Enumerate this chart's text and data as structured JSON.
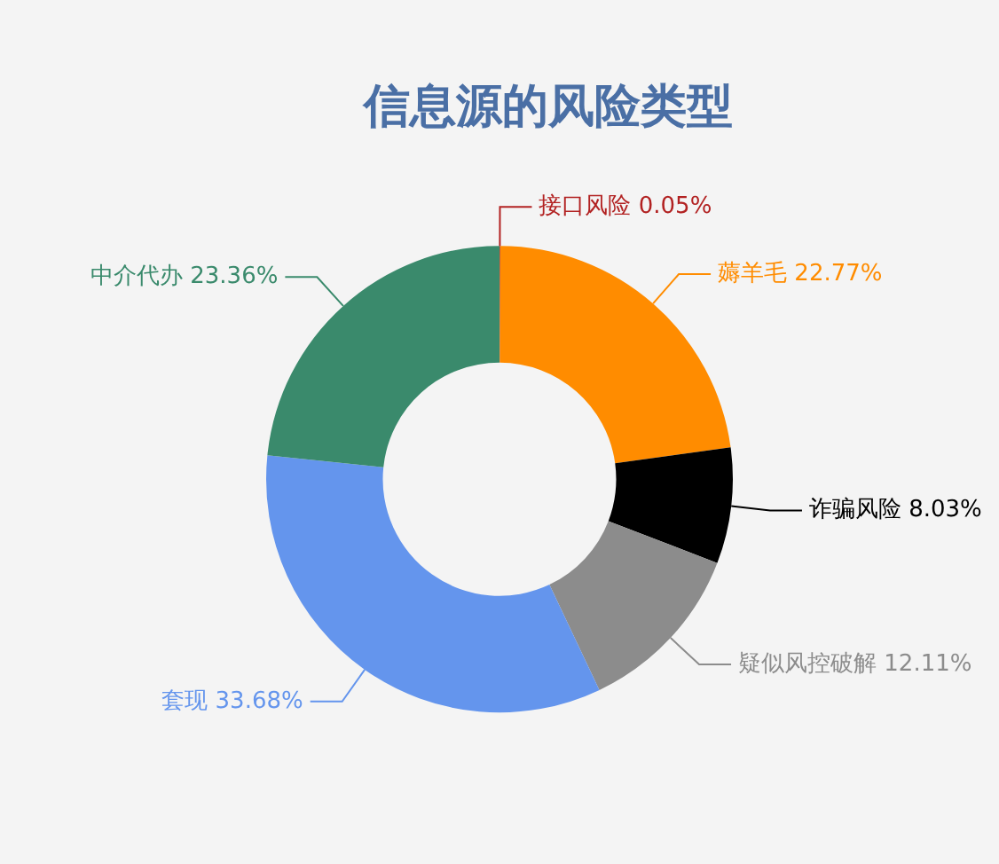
{
  "chart_data": {
    "type": "donut",
    "title": "信息源的风险类型",
    "categories": [
      "接口风险",
      "薅羊毛",
      "诈骗风险",
      "疑似风控破解",
      "套现",
      "中介代办"
    ],
    "values": [
      0.05,
      22.77,
      8.03,
      12.11,
      33.68,
      23.36
    ],
    "colors": [
      "#b22222",
      "#ff8c00",
      "#000000",
      "#8c8c8c",
      "#6495ed",
      "#3a8a6c"
    ],
    "value_labels": [
      "0.05%",
      "22.77%",
      "8.03%",
      "12.11%",
      "33.68%",
      "23.36%"
    ],
    "legend": false
  }
}
